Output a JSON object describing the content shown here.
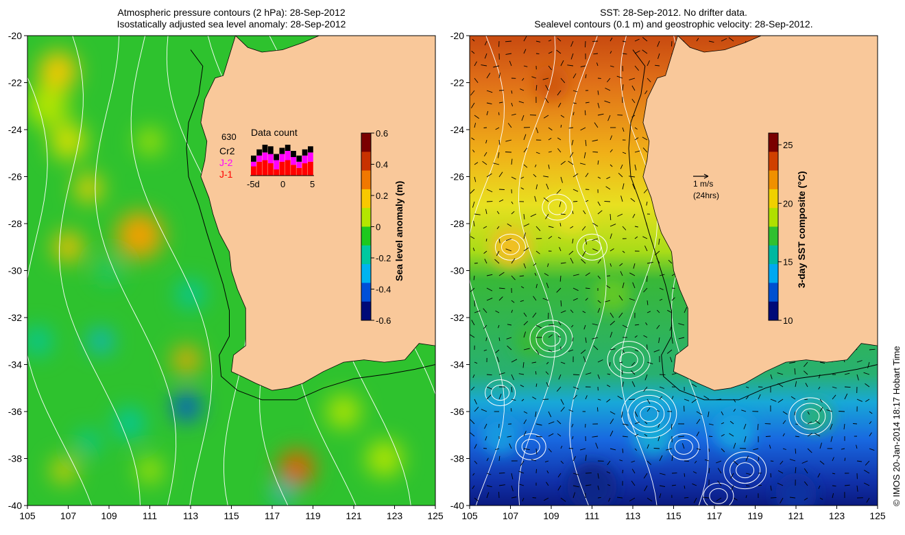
{
  "left_panel": {
    "title_line1": "Atmospheric pressure contours (2 hPa): 28-Sep-2012",
    "title_line2": "Isostatically adjusted sea level anomaly: 28-Sep-2012",
    "inset": {
      "title": "Data count",
      "max_label": "630",
      "series_labels": [
        {
          "text": "Cr2",
          "color": "#000000"
        },
        {
          "text": "J-2",
          "color": "#ff00ff"
        },
        {
          "text": "J-1",
          "color": "#ff0000"
        }
      ],
      "x_ticks": [
        "-5d",
        "0",
        "5"
      ],
      "bars": [
        {
          "day": -5,
          "j1": 0.3,
          "j2": 0.15,
          "cr2": 0.2
        },
        {
          "day": -4,
          "j1": 0.45,
          "j2": 0.2,
          "cr2": 0.2
        },
        {
          "day": -3,
          "j1": 0.5,
          "j2": 0.25,
          "cr2": 0.25
        },
        {
          "day": -2,
          "j1": 0.4,
          "j2": 0.3,
          "cr2": 0.25
        },
        {
          "day": -1,
          "j1": 0.2,
          "j2": 0.3,
          "cr2": 0.2
        },
        {
          "day": 0,
          "j1": 0.45,
          "j2": 0.25,
          "cr2": 0.2
        },
        {
          "day": 1,
          "j1": 0.5,
          "j2": 0.3,
          "cr2": 0.2
        },
        {
          "day": 2,
          "j1": 0.35,
          "j2": 0.25,
          "cr2": 0.2
        },
        {
          "day": 3,
          "j1": 0.25,
          "j2": 0.2,
          "cr2": 0.2
        },
        {
          "day": 4,
          "j1": 0.4,
          "j2": 0.25,
          "cr2": 0.2
        },
        {
          "day": 5,
          "j1": 0.45,
          "j2": 0.3,
          "cr2": 0.2
        }
      ]
    },
    "colorbar": {
      "label": "Sea level anomaly (m)",
      "ticks": [
        "0.6",
        "0.4",
        "0.2",
        "0",
        "-0.2",
        "-0.4",
        "-0.6"
      ],
      "colors": [
        "#7a0000",
        "#c83200",
        "#f07800",
        "#f8c800",
        "#b4e600",
        "#1ec81e",
        "#00c8a0",
        "#00b4f0",
        "#0050d8",
        "#000a78"
      ]
    }
  },
  "right_panel": {
    "title_line1": "SST: 28-Sep-2012. No drifter data.",
    "title_line2": "Sealevel contours (0.1 m) and geostrophic velocity: 28-Sep-2012.",
    "scale_arrow": {
      "label1": "1 m/s",
      "label2": "(24hrs)"
    },
    "colorbar": {
      "label": "3-day SST composite (°C)",
      "ticks": [
        "25",
        "20",
        "15",
        "10"
      ],
      "colors": [
        "#7a0000",
        "#d04000",
        "#f09000",
        "#f0d000",
        "#b0e000",
        "#30c030",
        "#00b8a0",
        "#00a8f0",
        "#0050d0",
        "#000a78"
      ]
    }
  },
  "axes": {
    "lat_ticks": [
      "-20",
      "-22",
      "-24",
      "-26",
      "-28",
      "-30",
      "-32",
      "-34",
      "-36",
      "-38",
      "-40"
    ],
    "lon_ticks": [
      "105",
      "107",
      "109",
      "111",
      "113",
      "115",
      "117",
      "119",
      "121",
      "123",
      "125"
    ]
  },
  "map": {
    "land_color": "#f9c89a",
    "land_outline": [
      [
        115.2,
        -20
      ],
      [
        115.8,
        -20.5
      ],
      [
        116.5,
        -20.7
      ],
      [
        117.5,
        -20.6
      ],
      [
        118.5,
        -20.3
      ],
      [
        119.3,
        -20.0
      ],
      [
        125,
        -20
      ],
      [
        125,
        -33.2
      ],
      [
        124.2,
        -33.1
      ],
      [
        123.5,
        -33.8
      ],
      [
        122.5,
        -33.9
      ],
      [
        121.5,
        -33.8
      ],
      [
        120.5,
        -33.9
      ],
      [
        119.5,
        -34.3
      ],
      [
        118.5,
        -34.8
      ],
      [
        117.8,
        -35.0
      ],
      [
        117.0,
        -35.1
      ],
      [
        116.2,
        -34.8
      ],
      [
        115.5,
        -34.5
      ],
      [
        115.0,
        -34.3
      ],
      [
        115.1,
        -33.6
      ],
      [
        115.7,
        -33.2
      ],
      [
        115.7,
        -32.3
      ],
      [
        115.7,
        -31.6
      ],
      [
        115.3,
        -30.8
      ],
      [
        115.0,
        -30.0
      ],
      [
        114.9,
        -29.2
      ],
      [
        114.4,
        -28.4
      ],
      [
        114.1,
        -27.6
      ],
      [
        113.9,
        -26.9
      ],
      [
        113.5,
        -26.0
      ],
      [
        113.7,
        -25.3
      ],
      [
        113.8,
        -24.5
      ],
      [
        113.5,
        -23.7
      ],
      [
        113.7,
        -22.7
      ],
      [
        114.2,
        -21.8
      ],
      [
        114.6,
        -21.7
      ]
    ]
  },
  "credit": "© IMOS 20-Jan-2014 18:17 Hobart Time"
}
